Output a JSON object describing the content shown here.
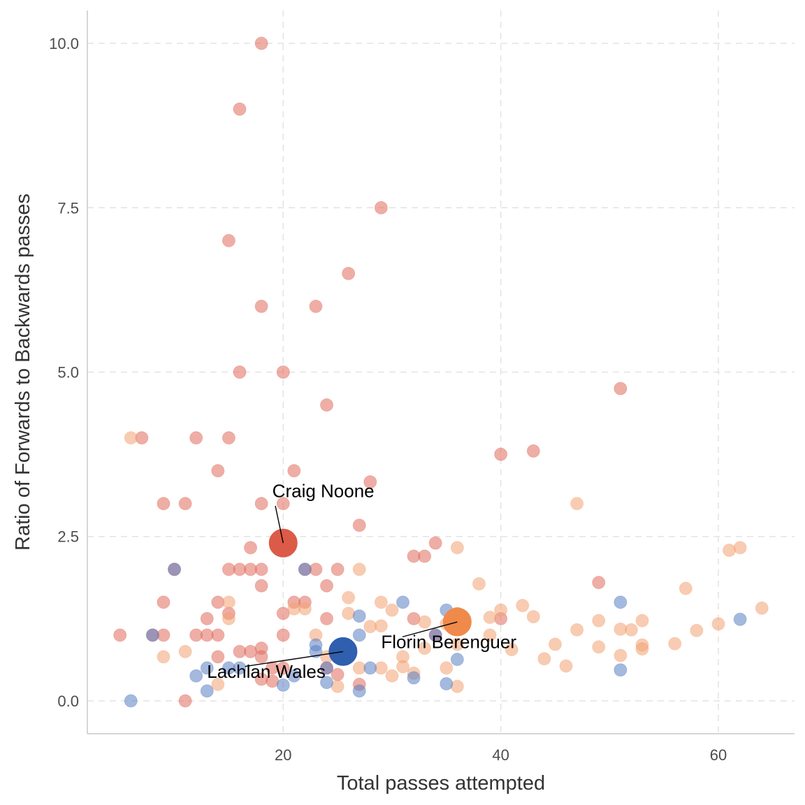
{
  "chart_data": {
    "type": "scatter",
    "xlabel": "Total passes attempted",
    "ylabel": "Ratio of Forwards to Backwards passes",
    "xlim": [
      2,
      67
    ],
    "ylim": [
      -0.5,
      10.5
    ],
    "x_ticks": [
      20,
      40,
      60
    ],
    "x_tick_labels": [
      "20",
      "40",
      "60"
    ],
    "y_ticks": [
      0,
      2.5,
      5,
      7.5,
      10
    ],
    "y_tick_labels": [
      "0.0",
      "2.5",
      "5.0",
      "7.5",
      "10.0"
    ],
    "grid": true,
    "colors": {
      "red": "#e06b5c",
      "orange": "#f3a373",
      "blue": "#5a7fc2",
      "highlight_red": "#dc5a48",
      "highlight_orange": "#ef8a4a",
      "highlight_blue": "#2f5fae"
    },
    "series": [
      {
        "values": [
          [
            18,
            10.0
          ],
          [
            16,
            9.0
          ],
          [
            29,
            7.5
          ],
          [
            15,
            7.0
          ],
          [
            26,
            6.5
          ],
          [
            18,
            6.0
          ],
          [
            23,
            6.0
          ],
          [
            16,
            5.0
          ],
          [
            20,
            5.0
          ],
          [
            24,
            4.5
          ],
          [
            51,
            4.75
          ],
          [
            7,
            4.0
          ],
          [
            12,
            4.0
          ],
          [
            15,
            4.0
          ],
          [
            40,
            3.75
          ],
          [
            43,
            3.8
          ],
          [
            14,
            3.5
          ],
          [
            21,
            3.5
          ],
          [
            28,
            3.33
          ],
          [
            9,
            3.0
          ],
          [
            11,
            3.0
          ],
          [
            18,
            3.0
          ],
          [
            20,
            3.0
          ],
          [
            27,
            2.67
          ],
          [
            17,
            2.33
          ],
          [
            34,
            2.4
          ],
          [
            32,
            2.2
          ],
          [
            33,
            2.2
          ],
          [
            10,
            2.0
          ],
          [
            15,
            2.0
          ],
          [
            16,
            2.0
          ],
          [
            17,
            2.0
          ],
          [
            18,
            2.0
          ],
          [
            22,
            2.0
          ],
          [
            23,
            2.0
          ],
          [
            25,
            2.0
          ],
          [
            18,
            1.75
          ],
          [
            24,
            1.75
          ],
          [
            49,
            1.8
          ],
          [
            9,
            1.5
          ],
          [
            14,
            1.5
          ],
          [
            21,
            1.5
          ],
          [
            22,
            1.5
          ],
          [
            15,
            1.33
          ],
          [
            20,
            1.33
          ],
          [
            32,
            1.25
          ],
          [
            40,
            1.25
          ],
          [
            13,
            1.25
          ],
          [
            24,
            1.25
          ],
          [
            5,
            1.0
          ],
          [
            8,
            1.0
          ],
          [
            9,
            1.0
          ],
          [
            12,
            1.0
          ],
          [
            13,
            1.0
          ],
          [
            14,
            1.0
          ],
          [
            20,
            1.0
          ],
          [
            34,
            1.0
          ],
          [
            18,
            0.8
          ],
          [
            16,
            0.75
          ],
          [
            17,
            0.75
          ],
          [
            14,
            0.67
          ],
          [
            18,
            0.67
          ],
          [
            19,
            0.5
          ],
          [
            20,
            0.5
          ],
          [
            24,
            0.5
          ],
          [
            25,
            0.4
          ],
          [
            18,
            0.33
          ],
          [
            19,
            0.3
          ],
          [
            27,
            0.25
          ],
          [
            11,
            0.0
          ]
        ]
      },
      {
        "values": [
          [
            6,
            4.0
          ],
          [
            62,
            2.33
          ],
          [
            61,
            2.29
          ],
          [
            47,
            3.0
          ],
          [
            36,
            2.33
          ],
          [
            27,
            2.0
          ],
          [
            38,
            1.78
          ],
          [
            57,
            1.71
          ],
          [
            26,
            1.57
          ],
          [
            29,
            1.5
          ],
          [
            15,
            1.5
          ],
          [
            21,
            1.4
          ],
          [
            22,
            1.4
          ],
          [
            30,
            1.38
          ],
          [
            36,
            1.33
          ],
          [
            40,
            1.38
          ],
          [
            42,
            1.45
          ],
          [
            64,
            1.41
          ],
          [
            26,
            1.33
          ],
          [
            28,
            1.13
          ],
          [
            29,
            1.14
          ],
          [
            33,
            1.2
          ],
          [
            35,
            1.17
          ],
          [
            39,
            1.27
          ],
          [
            43,
            1.28
          ],
          [
            49,
            1.22
          ],
          [
            53,
            1.22
          ],
          [
            60,
            1.17
          ],
          [
            47,
            1.08
          ],
          [
            51,
            1.09
          ],
          [
            52,
            1.08
          ],
          [
            58,
            1.07
          ],
          [
            15,
            1.25
          ],
          [
            23,
            1.0
          ],
          [
            39,
            1.0
          ],
          [
            45,
            0.86
          ],
          [
            53,
            0.85
          ],
          [
            56,
            0.87
          ],
          [
            49,
            0.82
          ],
          [
            53,
            0.79
          ],
          [
            41,
            0.78
          ],
          [
            33,
            0.8
          ],
          [
            31,
            0.67
          ],
          [
            36,
            0.86
          ],
          [
            11,
            0.75
          ],
          [
            9,
            0.67
          ],
          [
            44,
            0.64
          ],
          [
            51,
            0.69
          ],
          [
            46,
            0.53
          ],
          [
            31,
            0.52
          ],
          [
            27,
            0.5
          ],
          [
            29,
            0.5
          ],
          [
            35,
            0.5
          ],
          [
            30,
            0.38
          ],
          [
            32,
            0.42
          ],
          [
            14,
            0.25
          ],
          [
            25,
            0.22
          ],
          [
            36,
            0.22
          ],
          [
            24,
            0.67
          ],
          [
            26,
            0.8
          ]
        ]
      },
      {
        "values": [
          [
            10,
            2.0
          ],
          [
            22,
            2.0
          ],
          [
            8,
            1.0
          ],
          [
            31,
            1.5
          ],
          [
            35,
            1.38
          ],
          [
            51,
            1.5
          ],
          [
            62,
            1.24
          ],
          [
            27,
            1.29
          ],
          [
            27,
            1.0
          ],
          [
            34,
            1.0
          ],
          [
            23,
            0.85
          ],
          [
            23,
            0.75
          ],
          [
            36,
            0.63
          ],
          [
            13,
            0.5
          ],
          [
            15,
            0.5
          ],
          [
            16,
            0.5
          ],
          [
            24,
            0.5
          ],
          [
            28,
            0.5
          ],
          [
            12,
            0.38
          ],
          [
            21,
            0.38
          ],
          [
            32,
            0.35
          ],
          [
            20,
            0.24
          ],
          [
            24,
            0.28
          ],
          [
            35,
            0.26
          ],
          [
            51,
            0.47
          ],
          [
            13,
            0.15
          ],
          [
            27,
            0.15
          ],
          [
            6,
            0.0
          ]
        ]
      }
    ],
    "annotations": [
      {
        "label": "Craig Noone",
        "x": 20,
        "y": 2.4,
        "color_key": "highlight_red",
        "label_x": 19,
        "label_y": 3.1,
        "anchor": "start"
      },
      {
        "label": "Florin Berenguer",
        "x": 36,
        "y": 1.2,
        "color_key": "highlight_orange",
        "label_x": 29,
        "label_y": 0.8,
        "anchor": "start"
      },
      {
        "label": "Lachlan Wales",
        "x": 25.5,
        "y": 0.75,
        "color_key": "highlight_blue",
        "label_x": 13,
        "label_y": 0.35,
        "anchor": "start"
      }
    ]
  }
}
